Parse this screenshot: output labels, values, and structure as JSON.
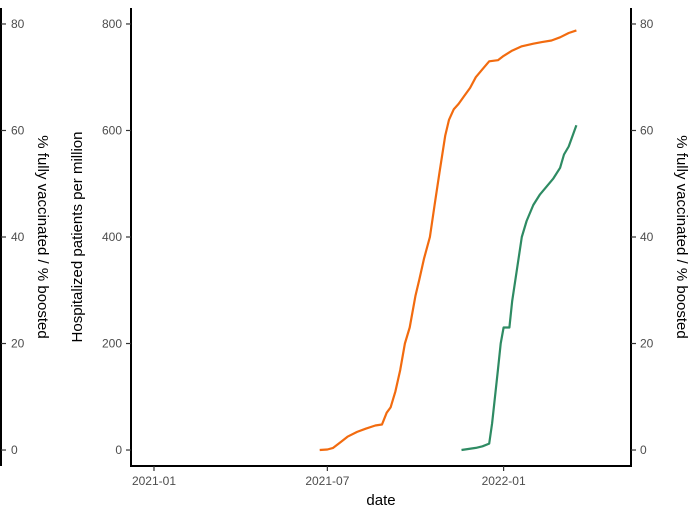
{
  "chart_data": {
    "type": "line",
    "title": "",
    "xlabel": "date",
    "ylabel": "Hospitalized patients per million",
    "y2label": "% fully vaccinated / % boosted",
    "y3label": "% fully vaccinated / % boosted",
    "x_ticks": [
      "2021-01",
      "2021-07",
      "2022-01"
    ],
    "xlim": [
      "2020-12-08",
      "2022-05-14"
    ],
    "ylim": [
      -30,
      830
    ],
    "y_ticks": [
      0,
      200,
      400,
      600,
      800
    ],
    "y2lim": [
      -3,
      83
    ],
    "y2_ticks": [
      0,
      20,
      40,
      60,
      80
    ],
    "grid": false,
    "legend": "none",
    "colors": {
      "fully_vaccinated": "#f26b0f",
      "boosted": "#2e8b63"
    },
    "series": [
      {
        "axis": "right",
        "color": "#f26b0f",
        "points": [
          [
            "2021-06-23",
            0.0
          ],
          [
            "2021-07-01",
            0.1
          ],
          [
            "2021-07-07",
            0.4
          ],
          [
            "2021-07-15",
            1.5
          ],
          [
            "2021-07-22",
            2.5
          ],
          [
            "2021-08-01",
            3.4
          ],
          [
            "2021-08-10",
            4.0
          ],
          [
            "2021-08-20",
            4.6
          ],
          [
            "2021-08-27",
            4.8
          ],
          [
            "2021-09-01",
            7.0
          ],
          [
            "2021-09-05",
            8.0
          ],
          [
            "2021-09-10",
            11.0
          ],
          [
            "2021-09-15",
            15.0
          ],
          [
            "2021-09-20",
            20.0
          ],
          [
            "2021-09-25",
            23.0
          ],
          [
            "2021-10-01",
            29.0
          ],
          [
            "2021-10-05",
            32.0
          ],
          [
            "2021-10-10",
            36.0
          ],
          [
            "2021-10-16",
            40.0
          ],
          [
            "2021-10-21",
            46.0
          ],
          [
            "2021-10-26",
            52.0
          ],
          [
            "2021-11-01",
            59.0
          ],
          [
            "2021-11-05",
            62.0
          ],
          [
            "2021-11-10",
            64.0
          ],
          [
            "2021-11-15",
            65.0
          ],
          [
            "2021-11-21",
            66.5
          ],
          [
            "2021-11-27",
            68.0
          ],
          [
            "2021-12-03",
            70.0
          ],
          [
            "2021-12-10",
            71.5
          ],
          [
            "2021-12-17",
            73.0
          ],
          [
            "2021-12-26",
            73.2
          ],
          [
            "2022-01-01",
            74.0
          ],
          [
            "2022-01-10",
            75.0
          ],
          [
            "2022-01-20",
            75.8
          ],
          [
            "2022-02-01",
            76.3
          ],
          [
            "2022-02-10",
            76.6
          ],
          [
            "2022-02-20",
            76.9
          ],
          [
            "2022-03-01",
            77.5
          ],
          [
            "2022-03-10",
            78.3
          ],
          [
            "2022-03-18",
            78.8
          ]
        ]
      },
      {
        "axis": "right",
        "color": "#2e8b63",
        "points": [
          [
            "2021-11-18",
            0.0
          ],
          [
            "2021-11-25",
            0.2
          ],
          [
            "2021-12-03",
            0.4
          ],
          [
            "2021-12-10",
            0.7
          ],
          [
            "2021-12-17",
            1.2
          ],
          [
            "2021-12-20",
            5.0
          ],
          [
            "2021-12-23",
            10.0
          ],
          [
            "2021-12-26",
            15.0
          ],
          [
            "2021-12-29",
            20.0
          ],
          [
            "2022-01-01",
            23.0
          ],
          [
            "2022-01-07",
            23.0
          ],
          [
            "2022-01-10",
            28.0
          ],
          [
            "2022-01-15",
            34.0
          ],
          [
            "2022-01-20",
            40.0
          ],
          [
            "2022-01-25",
            43.0
          ],
          [
            "2022-02-01",
            46.0
          ],
          [
            "2022-02-08",
            48.0
          ],
          [
            "2022-02-15",
            49.5
          ],
          [
            "2022-02-22",
            51.0
          ],
          [
            "2022-03-01",
            53.0
          ],
          [
            "2022-03-05",
            55.5
          ],
          [
            "2022-03-10",
            57.0
          ],
          [
            "2022-03-15",
            59.5
          ],
          [
            "2022-03-18",
            61.0
          ]
        ]
      }
    ]
  }
}
